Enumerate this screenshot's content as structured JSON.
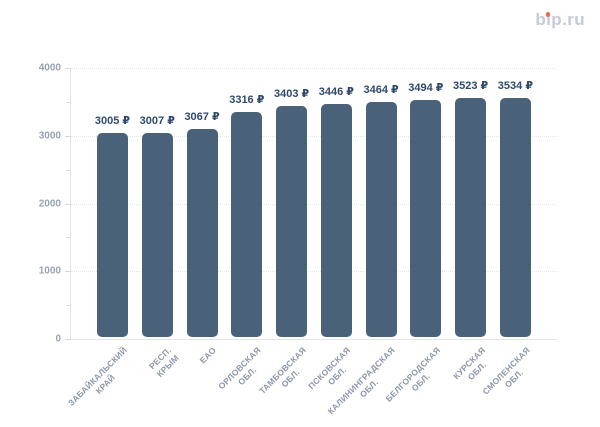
{
  "logo": {
    "text": "bip.ru",
    "text_color": "#c6cad7",
    "dot_color": "#ee6c4d"
  },
  "chart_data": {
    "type": "bar",
    "categories": [
      "ЗАБАЙКАЛЬСКИЙ\nКРАЙ",
      "РЕСП. КРЫМ",
      "ЕАО",
      "ОРЛОВСКАЯ\nОБЛ.",
      "ТАМБОВСКАЯ\nОБЛ.",
      "ПСКОВСКАЯ\nОБЛ.",
      "КАЛИНИНГРАДСКАЯ\nОБЛ.",
      "БЕЛГОРОДСКАЯ\nОБЛ.",
      "КУРСКАЯ ОБЛ.",
      "СМОЛЕНСКАЯ\nОБЛ."
    ],
    "values": [
      3005,
      3007,
      3067,
      3316,
      3403,
      3446,
      3464,
      3494,
      3523,
      3534
    ],
    "value_labels": [
      "3005 ₽",
      "3007 ₽",
      "3067 ₽",
      "3316 ₽",
      "3403 ₽",
      "3446 ₽",
      "3464 ₽",
      "3494 ₽",
      "3523 ₽",
      "3534 ₽"
    ],
    "currency": "₽",
    "ylim": [
      0,
      4000
    ],
    "y_ticks": [
      0,
      1000,
      2000,
      3000,
      4000
    ],
    "y_tick_labels": [
      "0",
      "1000",
      "2000",
      "3000",
      "4000"
    ],
    "y_minor_tick_step": 500,
    "grid": "horizontal-dotted",
    "legend": "none",
    "bar_color": "#4a617a",
    "value_label_color": "#2f4a6d",
    "axis_tick_label_color": "#9aa2b1",
    "category_label_color": "#8e98a9",
    "category_label_rotation_deg": -45
  }
}
